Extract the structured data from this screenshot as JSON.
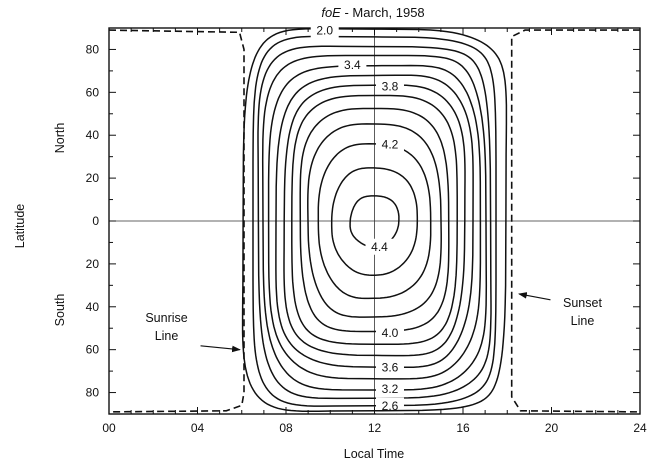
{
  "chart_data": {
    "type": "contour",
    "title_italic": "foE",
    "title_rest": " - March, 1958",
    "xlabel": "Local Time",
    "ylabel": "Latitude",
    "ylabel_north": "North",
    "ylabel_south": "South",
    "xlim": [
      0,
      24
    ],
    "ylim": [
      -90,
      90
    ],
    "xticks": [
      {
        "value": 0,
        "label": "00"
      },
      {
        "value": 4,
        "label": "04"
      },
      {
        "value": 8,
        "label": "08"
      },
      {
        "value": 12,
        "label": "12"
      },
      {
        "value": 16,
        "label": "16"
      },
      {
        "value": 20,
        "label": "20"
      },
      {
        "value": 24,
        "label": "24"
      }
    ],
    "yticks": [
      {
        "value": 80,
        "label": "80"
      },
      {
        "value": 60,
        "label": "60"
      },
      {
        "value": 40,
        "label": "40"
      },
      {
        "value": 20,
        "label": "20"
      },
      {
        "value": 0,
        "label": "0"
      },
      {
        "value": -20,
        "label": "20"
      },
      {
        "value": -40,
        "label": "40"
      },
      {
        "value": -60,
        "label": "60"
      },
      {
        "value": -80,
        "label": "80"
      }
    ],
    "grid": "center lines at 12 LT and 0 latitude",
    "contour_center": {
      "x": 12,
      "y": 0
    },
    "contours": [
      {
        "level": 4.4,
        "half_width_h": 1.1,
        "half_height_deg": 12,
        "label": "4.4"
      },
      {
        "level": 4.3,
        "half_width_h": 1.9,
        "half_height_deg": 25,
        "label": ""
      },
      {
        "level": 4.2,
        "half_width_h": 2.5,
        "half_height_deg": 36,
        "label": "4.2"
      },
      {
        "level": 4.1,
        "half_width_h": 3.0,
        "half_height_deg": 45,
        "label": ""
      },
      {
        "level": 4.0,
        "half_width_h": 3.4,
        "half_height_deg": 52,
        "label": "4.0"
      },
      {
        "level": 3.9,
        "half_width_h": 3.8,
        "half_height_deg": 58,
        "label": ""
      },
      {
        "level": 3.8,
        "half_width_h": 4.1,
        "half_height_deg": 63,
        "label": "3.8"
      },
      {
        "level": 3.6,
        "half_width_h": 4.4,
        "half_height_deg": 68,
        "label": "3.6"
      },
      {
        "level": 3.4,
        "half_width_h": 4.7,
        "half_height_deg": 73,
        "label": "3.4"
      },
      {
        "level": 3.2,
        "half_width_h": 5.0,
        "half_height_deg": 78,
        "label": "3.2"
      },
      {
        "level": 3.0,
        "half_width_h": 5.3,
        "half_height_deg": 82,
        "label": ""
      },
      {
        "level": 2.6,
        "half_width_h": 5.6,
        "half_height_deg": 86,
        "label": "2.6"
      },
      {
        "level": 2.0,
        "half_width_h": 6.0,
        "half_height_deg": 89,
        "label": "2.0"
      }
    ],
    "terminators": [
      {
        "name": "Sunrise Line",
        "style": "dashed",
        "points": [
          [
            0,
            89
          ],
          [
            5.9,
            88
          ],
          [
            6.1,
            80
          ],
          [
            6.1,
            -80
          ],
          [
            6.0,
            -86
          ],
          [
            5.3,
            -88.5
          ],
          [
            0,
            -89
          ]
        ]
      },
      {
        "name": "Sunset Line",
        "style": "dashed",
        "points": [
          [
            24,
            89
          ],
          [
            18.8,
            89
          ],
          [
            18.2,
            86
          ],
          [
            18.2,
            -82
          ],
          [
            18.6,
            -88.5
          ],
          [
            24,
            -89
          ]
        ]
      }
    ],
    "annotations": [
      {
        "name": "sunrise",
        "lines": [
          "Sunrise",
          "Line"
        ],
        "x": 2.6,
        "y": -47,
        "arrow_to": [
          6.0,
          -60
        ]
      },
      {
        "name": "sunset",
        "lines": [
          "Sunset",
          "Line"
        ],
        "x": 21.4,
        "y": -40,
        "arrow_to": [
          18.4,
          -34
        ]
      }
    ]
  }
}
